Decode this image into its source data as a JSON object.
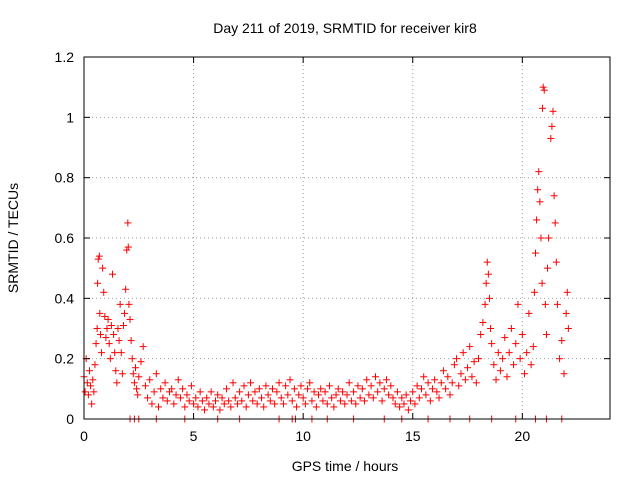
{
  "chart_data": {
    "type": "scatter",
    "title": "Day 211 of 2019, SRMTID for receiver kir8",
    "xlabel": "GPS time / hours",
    "ylabel": "SRMTID / TECUs",
    "xlim": [
      0,
      24
    ],
    "ylim": [
      0,
      1.2
    ],
    "xticks": [
      0,
      5,
      10,
      15,
      20
    ],
    "xtick_labels": [
      "0",
      "5",
      "10",
      "15",
      "20"
    ],
    "yticks": [
      0,
      0.2,
      0.4,
      0.6,
      0.8,
      1.0,
      1.2
    ],
    "ytick_labels": [
      "0",
      "0.2",
      "0.4",
      "0.6",
      "0.8",
      "1",
      "1.2"
    ],
    "grid": true,
    "marker": "+",
    "color": "#ff0000",
    "series": [
      {
        "name": "kir8",
        "points": [
          [
            0.0,
            0.14
          ],
          [
            0.05,
            0.09
          ],
          [
            0.1,
            0.2
          ],
          [
            0.15,
            0.12
          ],
          [
            0.2,
            0.08
          ],
          [
            0.25,
            0.16
          ],
          [
            0.3,
            0.11
          ],
          [
            0.35,
            0.05
          ],
          [
            0.4,
            0.13
          ],
          [
            0.45,
            0.09
          ],
          [
            0.5,
            0.18
          ],
          [
            0.55,
            0.25
          ],
          [
            0.6,
            0.3
          ],
          [
            0.62,
            0.45
          ],
          [
            0.65,
            0.53
          ],
          [
            0.7,
            0.54
          ],
          [
            0.72,
            0.35
          ],
          [
            0.75,
            0.28
          ],
          [
            0.8,
            0.22
          ],
          [
            0.85,
            0.5
          ],
          [
            0.9,
            0.42
          ],
          [
            0.95,
            0.34
          ],
          [
            1.0,
            0.27
          ],
          [
            1.05,
            0.3
          ],
          [
            1.1,
            0.33
          ],
          [
            1.15,
            0.25
          ],
          [
            1.2,
            0.2
          ],
          [
            1.25,
            0.31
          ],
          [
            1.3,
            0.48
          ],
          [
            1.35,
            0.28
          ],
          [
            1.4,
            0.22
          ],
          [
            1.45,
            0.16
          ],
          [
            1.5,
            0.12
          ],
          [
            1.55,
            0.3
          ],
          [
            1.6,
            0.26
          ],
          [
            1.65,
            0.38
          ],
          [
            1.7,
            0.22
          ],
          [
            1.75,
            0.15
          ],
          [
            1.8,
            0.31
          ],
          [
            1.85,
            0.35
          ],
          [
            1.9,
            0.43
          ],
          [
            1.95,
            0.56
          ],
          [
            2.0,
            0.65
          ],
          [
            2.02,
            0.57
          ],
          [
            2.05,
            0.38
          ],
          [
            2.1,
            0.33
          ],
          [
            2.15,
            0.26
          ],
          [
            2.2,
            0.2
          ],
          [
            2.25,
            0.15
          ],
          [
            2.3,
            0.12
          ],
          [
            2.35,
            0.17
          ],
          [
            2.4,
            0.1
          ],
          [
            2.45,
            0.08
          ],
          [
            2.5,
            0.14
          ],
          [
            2.6,
            0.19
          ],
          [
            2.7,
            0.24
          ],
          [
            2.8,
            0.11
          ],
          [
            2.9,
            0.07
          ],
          [
            3.0,
            0.13
          ],
          [
            3.1,
            0.05
          ],
          [
            3.2,
            0.09
          ],
          [
            3.3,
            0.15
          ],
          [
            3.4,
            0.04
          ],
          [
            3.5,
            0.1
          ],
          [
            3.6,
            0.07
          ],
          [
            3.7,
            0.12
          ],
          [
            3.8,
            0.06
          ],
          [
            3.9,
            0.09
          ],
          [
            4.0,
            0.1
          ],
          [
            4.1,
            0.05
          ],
          [
            4.2,
            0.08
          ],
          [
            4.3,
            0.13
          ],
          [
            4.4,
            0.07
          ],
          [
            4.5,
            0.1
          ],
          [
            4.6,
            0.04
          ],
          [
            4.7,
            0.08
          ],
          [
            4.8,
            0.06
          ],
          [
            4.9,
            0.11
          ],
          [
            5.0,
            0.05
          ],
          [
            5.1,
            0.07
          ],
          [
            5.2,
            0.04
          ],
          [
            5.3,
            0.09
          ],
          [
            5.4,
            0.06
          ],
          [
            5.5,
            0.03
          ],
          [
            5.6,
            0.07
          ],
          [
            5.7,
            0.05
          ],
          [
            5.8,
            0.09
          ],
          [
            5.9,
            0.04
          ],
          [
            6.0,
            0.06
          ],
          [
            6.1,
            0.08
          ],
          [
            6.2,
            0.03
          ],
          [
            6.3,
            0.07
          ],
          [
            6.4,
            0.05
          ],
          [
            6.5,
            0.1
          ],
          [
            6.6,
            0.06
          ],
          [
            6.7,
            0.04
          ],
          [
            6.8,
            0.12
          ],
          [
            6.9,
            0.07
          ],
          [
            7.0,
            0.05
          ],
          [
            7.1,
            0.09
          ],
          [
            7.2,
            0.06
          ],
          [
            7.3,
            0.11
          ],
          [
            7.4,
            0.04
          ],
          [
            7.5,
            0.08
          ],
          [
            7.6,
            0.12
          ],
          [
            7.7,
            0.06
          ],
          [
            7.8,
            0.09
          ],
          [
            7.9,
            0.05
          ],
          [
            8.0,
            0.1
          ],
          [
            8.1,
            0.07
          ],
          [
            8.2,
            0.04
          ],
          [
            8.3,
            0.11
          ],
          [
            8.4,
            0.08
          ],
          [
            8.5,
            0.06
          ],
          [
            8.6,
            0.1
          ],
          [
            8.7,
            0.05
          ],
          [
            8.8,
            0.09
          ],
          [
            8.9,
            0.12
          ],
          [
            9.0,
            0.07
          ],
          [
            9.1,
            0.05
          ],
          [
            9.2,
            0.11
          ],
          [
            9.3,
            0.08
          ],
          [
            9.4,
            0.13
          ],
          [
            9.5,
            0.06
          ],
          [
            9.6,
            0.1
          ],
          [
            9.7,
            0.04
          ],
          [
            9.8,
            0.08
          ],
          [
            9.9,
            0.11
          ],
          [
            10.0,
            0.07
          ],
          [
            10.1,
            0.05
          ],
          [
            10.2,
            0.1
          ],
          [
            10.3,
            0.12
          ],
          [
            10.4,
            0.06
          ],
          [
            10.5,
            0.09
          ],
          [
            10.6,
            0.04
          ],
          [
            10.7,
            0.08
          ],
          [
            10.8,
            0.1
          ],
          [
            10.9,
            0.06
          ],
          [
            11.0,
            0.09
          ],
          [
            11.1,
            0.05
          ],
          [
            11.2,
            0.11
          ],
          [
            11.3,
            0.07
          ],
          [
            11.4,
            0.04
          ],
          [
            11.5,
            0.08
          ],
          [
            11.6,
            0.1
          ],
          [
            11.7,
            0.06
          ],
          [
            11.8,
            0.09
          ],
          [
            11.9,
            0.05
          ],
          [
            12.0,
            0.08
          ],
          [
            12.1,
            0.12
          ],
          [
            12.2,
            0.06
          ],
          [
            12.3,
            0.09
          ],
          [
            12.4,
            0.05
          ],
          [
            12.5,
            0.11
          ],
          [
            12.6,
            0.07
          ],
          [
            12.7,
            0.1
          ],
          [
            12.8,
            0.06
          ],
          [
            12.9,
            0.13
          ],
          [
            13.0,
            0.08
          ],
          [
            13.1,
            0.11
          ],
          [
            13.2,
            0.07
          ],
          [
            13.3,
            0.14
          ],
          [
            13.4,
            0.09
          ],
          [
            13.5,
            0.12
          ],
          [
            13.6,
            0.06
          ],
          [
            13.7,
            0.1
          ],
          [
            13.8,
            0.13
          ],
          [
            13.9,
            0.08
          ],
          [
            14.0,
            0.11
          ],
          [
            14.1,
            0.07
          ],
          [
            14.2,
            0.05
          ],
          [
            14.3,
            0.09
          ],
          [
            14.4,
            0.04
          ],
          [
            14.5,
            0.07
          ],
          [
            14.6,
            0.05
          ],
          [
            14.7,
            0.08
          ],
          [
            14.8,
            0.03
          ],
          [
            14.9,
            0.06
          ],
          [
            15.0,
            0.09
          ],
          [
            15.1,
            0.05
          ],
          [
            15.2,
            0.11
          ],
          [
            15.3,
            0.07
          ],
          [
            15.4,
            0.1
          ],
          [
            15.5,
            0.14
          ],
          [
            15.6,
            0.08
          ],
          [
            15.7,
            0.12
          ],
          [
            15.8,
            0.06
          ],
          [
            15.9,
            0.1
          ],
          [
            16.0,
            0.13
          ],
          [
            16.1,
            0.09
          ],
          [
            16.2,
            0.07
          ],
          [
            16.3,
            0.12
          ],
          [
            16.4,
            0.16
          ],
          [
            16.5,
            0.1
          ],
          [
            16.6,
            0.14
          ],
          [
            16.7,
            0.08
          ],
          [
            16.8,
            0.12
          ],
          [
            16.9,
            0.18
          ],
          [
            17.0,
            0.2
          ],
          [
            17.1,
            0.11
          ],
          [
            17.2,
            0.15
          ],
          [
            17.3,
            0.22
          ],
          [
            17.4,
            0.13
          ],
          [
            17.5,
            0.17
          ],
          [
            17.6,
            0.24
          ],
          [
            17.7,
            0.14
          ],
          [
            17.8,
            0.19
          ],
          [
            17.9,
            0.12
          ],
          [
            18.0,
            0.2
          ],
          [
            18.1,
            0.28
          ],
          [
            18.2,
            0.32
          ],
          [
            18.3,
            0.38
          ],
          [
            18.35,
            0.45
          ],
          [
            18.4,
            0.52
          ],
          [
            18.45,
            0.48
          ],
          [
            18.5,
            0.4
          ],
          [
            18.55,
            0.3
          ],
          [
            18.6,
            0.25
          ],
          [
            18.7,
            0.18
          ],
          [
            18.8,
            0.13
          ],
          [
            18.9,
            0.22
          ],
          [
            19.0,
            0.16
          ],
          [
            19.1,
            0.2
          ],
          [
            19.2,
            0.27
          ],
          [
            19.3,
            0.14
          ],
          [
            19.4,
            0.22
          ],
          [
            19.5,
            0.3
          ],
          [
            19.6,
            0.18
          ],
          [
            19.7,
            0.25
          ],
          [
            19.8,
            0.38
          ],
          [
            19.9,
            0.2
          ],
          [
            20.0,
            0.28
          ],
          [
            20.1,
            0.15
          ],
          [
            20.2,
            0.22
          ],
          [
            20.3,
            0.35
          ],
          [
            20.4,
            0.18
          ],
          [
            20.5,
            0.24
          ],
          [
            20.55,
            0.42
          ],
          [
            20.6,
            0.55
          ],
          [
            20.65,
            0.66
          ],
          [
            20.7,
            0.76
          ],
          [
            20.75,
            0.82
          ],
          [
            20.8,
            0.72
          ],
          [
            20.85,
            0.6
          ],
          [
            20.9,
            0.45
          ],
          [
            20.92,
            1.03
          ],
          [
            20.95,
            1.1
          ],
          [
            21.0,
            1.09
          ],
          [
            21.05,
            0.38
          ],
          [
            21.1,
            0.28
          ],
          [
            21.15,
            0.5
          ],
          [
            21.2,
            0.6
          ],
          [
            21.3,
            0.93
          ],
          [
            21.35,
            0.97
          ],
          [
            21.4,
            1.02
          ],
          [
            21.45,
            0.74
          ],
          [
            21.5,
            0.65
          ],
          [
            21.55,
            0.52
          ],
          [
            21.6,
            0.38
          ],
          [
            21.7,
            0.2
          ],
          [
            21.8,
            0.26
          ],
          [
            21.9,
            0.15
          ],
          [
            22.0,
            0.35
          ],
          [
            22.05,
            0.42
          ],
          [
            22.1,
            0.3
          ]
        ]
      }
    ],
    "zero_points_x": [
      2.1,
      2.3,
      2.5,
      3.3,
      4.6,
      6.1,
      7.1,
      8.9,
      9.5,
      9.65,
      10.4,
      11.1,
      12.3,
      13.7,
      14.5,
      15.7,
      16.7,
      17.6,
      18.6,
      19.7,
      20.6,
      21.1,
      21.8
    ]
  }
}
